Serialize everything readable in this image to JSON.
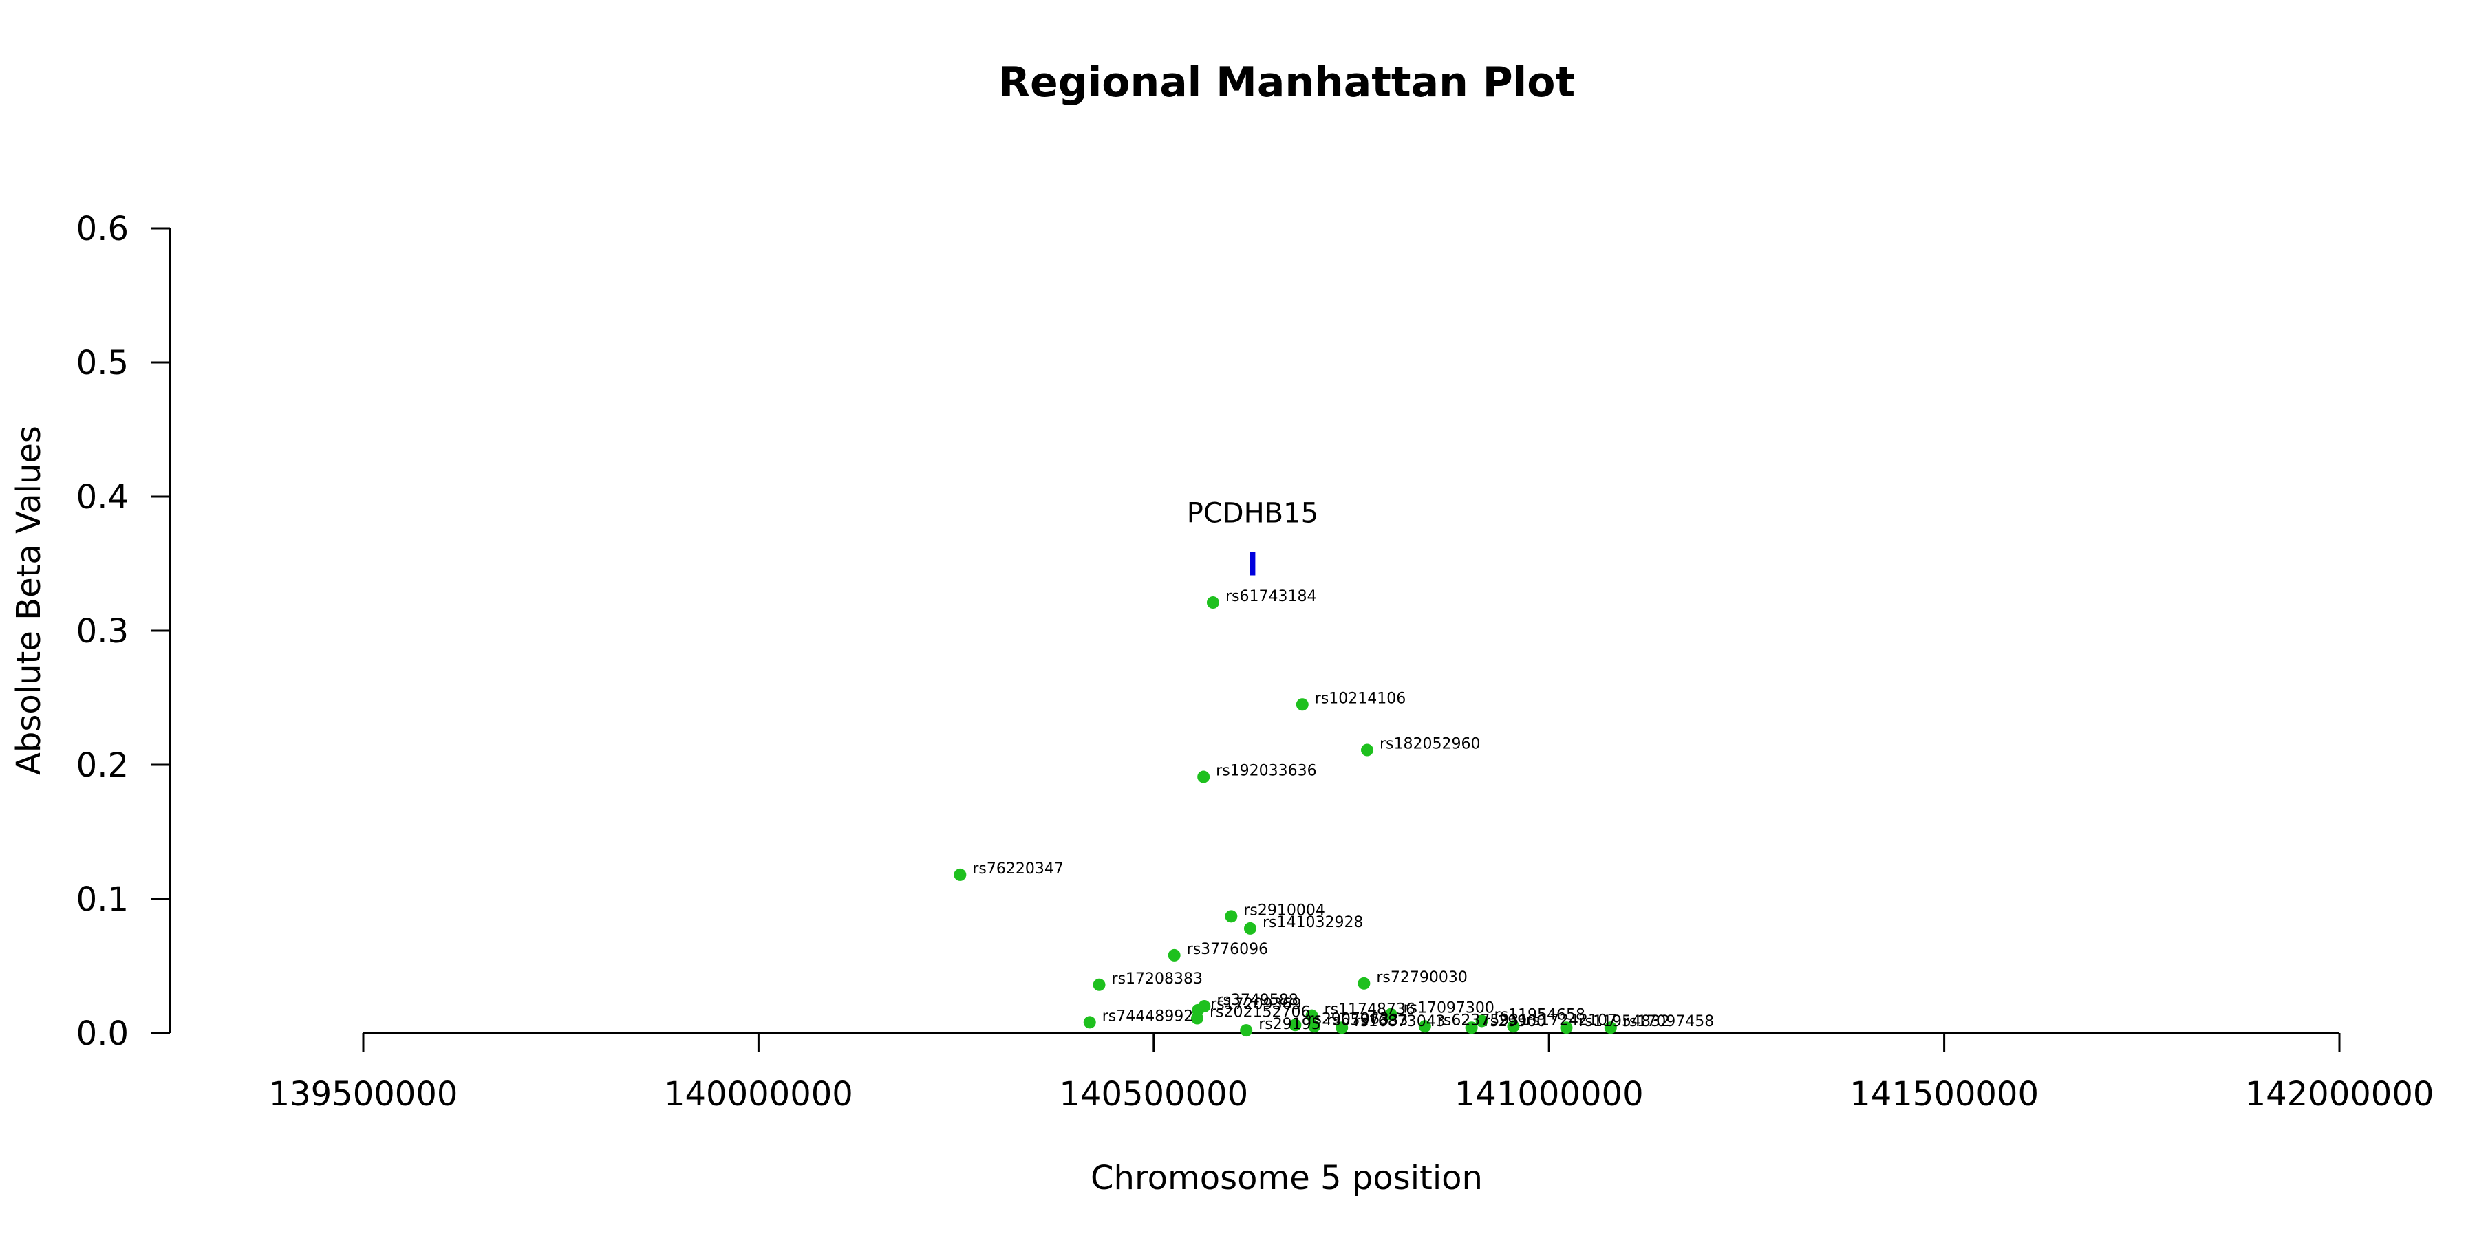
{
  "chart_data": {
    "type": "scatter",
    "title": "Regional Manhattan Plot",
    "xlabel": "Chromosome 5 position",
    "ylabel": "Absolute Beta Values",
    "xlim": [
      139500000,
      142000000
    ],
    "ylim": [
      0,
      0.6
    ],
    "x_ticks": [
      139500000,
      140000000,
      140500000,
      141000000,
      141500000,
      142000000
    ],
    "x_tick_labels": [
      "139500000",
      "140000000",
      "140500000",
      "141000000",
      "141500000",
      "142000000"
    ],
    "y_ticks": [
      0,
      0.1,
      0.2,
      0.3,
      0.4,
      0.5,
      0.6
    ],
    "y_tick_labels": [
      "0.0",
      "0.1",
      "0.2",
      "0.3",
      "0.4",
      "0.5",
      "0.6"
    ],
    "grid": false,
    "point_color": "#1ec01e",
    "gene_marker_color": "#0000dd",
    "gene_markers": [
      {
        "name": "PCDHB15",
        "x": 140625000,
        "y": 0.35
      }
    ],
    "points": [
      {
        "label": "rs61743184",
        "x": 140575000,
        "y": 0.321
      },
      {
        "label": "rs10214106",
        "x": 140688000,
        "y": 0.245
      },
      {
        "label": "rs182052960",
        "x": 140770000,
        "y": 0.211
      },
      {
        "label": "rs192033636",
        "x": 140563000,
        "y": 0.191
      },
      {
        "label": "rs76220347",
        "x": 140255000,
        "y": 0.118
      },
      {
        "label": "rs2910004",
        "x": 140598000,
        "y": 0.087
      },
      {
        "label": "rs141032928",
        "x": 140622000,
        "y": 0.078
      },
      {
        "label": "rs3776096",
        "x": 140526000,
        "y": 0.058
      },
      {
        "label": "rs17208383",
        "x": 140431000,
        "y": 0.036
      },
      {
        "label": "rs72790030",
        "x": 140766000,
        "y": 0.037
      },
      {
        "label": "rs3749588",
        "x": 140564000,
        "y": 0.02
      },
      {
        "label": "rs17209369",
        "x": 140556000,
        "y": 0.017
      },
      {
        "label": "rs74448992",
        "x": 140419000,
        "y": 0.008
      },
      {
        "label": "rs202152706",
        "x": 140555000,
        "y": 0.011
      },
      {
        "label": "rs11748736",
        "x": 140700000,
        "y": 0.013
      },
      {
        "label": "rs17097300",
        "x": 140800000,
        "y": 0.014
      },
      {
        "label": "rs11954658",
        "x": 140915000,
        "y": 0.009
      },
      {
        "label": "rs29195",
        "x": 140617000,
        "y": 0.002
      },
      {
        "label": "rs2907963",
        "x": 140679000,
        "y": 0.006
      },
      {
        "label": "rs6597333",
        "x": 140703000,
        "y": 0.005
      },
      {
        "label": "rs16873043",
        "x": 140738000,
        "y": 0.004
      },
      {
        "label": "rs62375931",
        "x": 140843000,
        "y": 0.005
      },
      {
        "label": "rs29900",
        "x": 140902000,
        "y": 0.004
      },
      {
        "label": "rs17242107",
        "x": 140955000,
        "y": 0.005
      },
      {
        "label": "rs11954832",
        "x": 141022000,
        "y": 0.004
      },
      {
        "label": "rs17097458",
        "x": 141078000,
        "y": 0.004
      }
    ]
  }
}
